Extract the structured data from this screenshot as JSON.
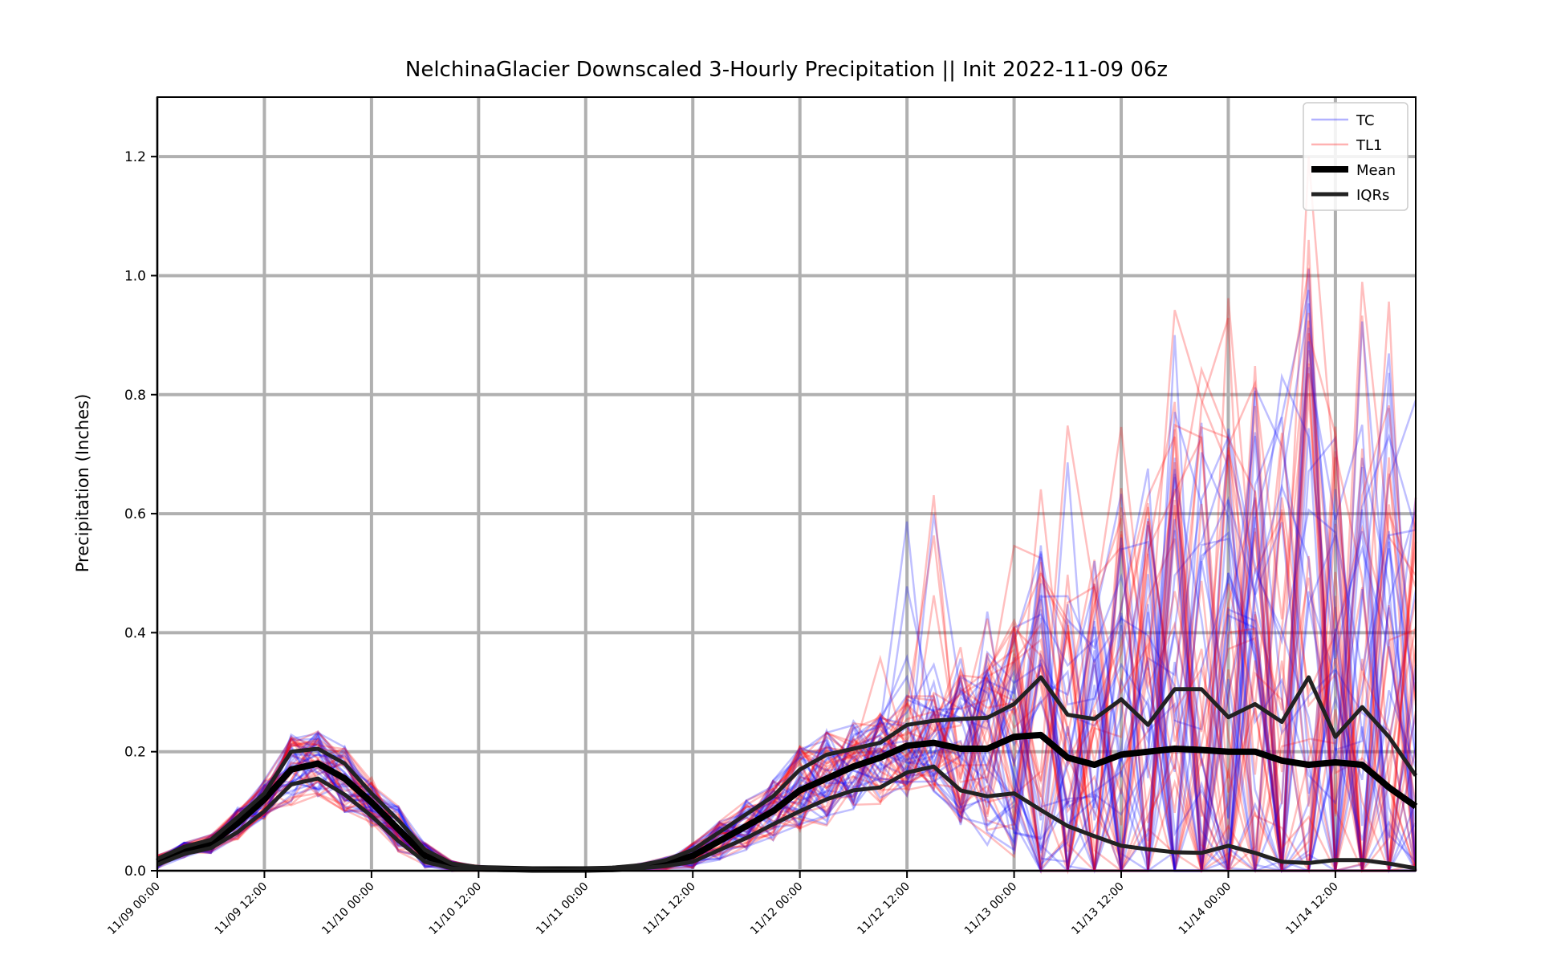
{
  "chart_data": {
    "type": "line",
    "title": "NelchinaGlacier Downscaled 3-Hourly Precipitation || Init 2022-11-09 06z",
    "xlabel": "",
    "ylabel": "Precipitation (Inches)",
    "xlim": [
      "11/09 00:00",
      "11/14 21:00"
    ],
    "ylim": [
      0,
      1.3
    ],
    "grid": true,
    "legend_position": "top-right",
    "x_ticks": [
      "11/09 00:00",
      "11/09 12:00",
      "11/10 00:00",
      "11/10 12:00",
      "11/11 00:00",
      "11/11 12:00",
      "11/12 00:00",
      "11/12 12:00",
      "11/13 00:00",
      "11/13 12:00",
      "11/14 00:00",
      "11/14 12:00"
    ],
    "y_ticks": [
      "0.0",
      "0.2",
      "0.4",
      "0.6",
      "0.8",
      "1.0",
      "1.2"
    ],
    "time_step_hours": 3,
    "colors": {
      "TC": "#0000ff",
      "TL1": "#ff0000",
      "Mean": "#000000",
      "IQRs": "#222222"
    },
    "legend": [
      "TC",
      "TL1",
      "Mean",
      "IQRs"
    ],
    "series": [
      {
        "name": "Mean",
        "values": [
          0.015,
          0.035,
          0.045,
          0.08,
          0.12,
          0.17,
          0.18,
          0.155,
          0.115,
          0.07,
          0.025,
          0.008,
          0.004,
          0.003,
          0.002,
          0.002,
          0.002,
          0.003,
          0.006,
          0.012,
          0.025,
          0.05,
          0.075,
          0.1,
          0.135,
          0.155,
          0.175,
          0.19,
          0.21,
          0.215,
          0.205,
          0.205,
          0.225,
          0.228,
          0.19,
          0.178,
          0.195,
          0.2,
          0.205,
          0.203,
          0.2,
          0.2,
          0.185,
          0.178,
          0.182,
          0.178,
          0.14,
          0.108
        ]
      },
      {
        "name": "IQRs",
        "values": [
          0.02,
          0.04,
          0.052,
          0.09,
          0.13,
          0.2,
          0.205,
          0.18,
          0.13,
          0.085,
          0.035,
          0.012,
          0.006,
          0.004,
          0.003,
          0.002,
          0.003,
          0.005,
          0.009,
          0.018,
          0.035,
          0.065,
          0.095,
          0.125,
          0.17,
          0.195,
          0.205,
          0.215,
          0.245,
          0.252,
          0.255,
          0.257,
          0.28,
          0.325,
          0.262,
          0.255,
          0.288,
          0.245,
          0.305,
          0.305,
          0.258,
          0.28,
          0.25,
          0.325,
          0.225,
          0.275,
          0.225,
          0.16
        ]
      },
      {
        "name": "IQRs",
        "values": [
          0.01,
          0.028,
          0.038,
          0.065,
          0.1,
          0.145,
          0.155,
          0.128,
          0.092,
          0.05,
          0.015,
          0.004,
          0.002,
          0.001,
          0.001,
          0.001,
          0.001,
          0.002,
          0.004,
          0.008,
          0.015,
          0.035,
          0.055,
          0.078,
          0.1,
          0.12,
          0.135,
          0.14,
          0.165,
          0.175,
          0.135,
          0.125,
          0.13,
          0.102,
          0.075,
          0.058,
          0.042,
          0.036,
          0.031,
          0.03,
          0.042,
          0.03,
          0.015,
          0.013,
          0.018,
          0.018,
          0.012,
          0.004
        ]
      }
    ]
  }
}
